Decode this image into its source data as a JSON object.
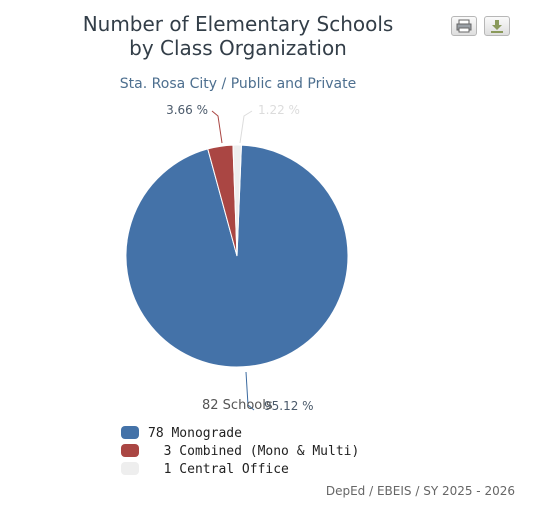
{
  "header": {
    "title_line1": "Number of Elementary Schools",
    "title_line2": "by Class Organization",
    "subtitle": "Sta. Rosa City / Public and Private"
  },
  "toolbar": {
    "print_icon": "printer-icon",
    "download_icon": "download-icon"
  },
  "center_label": "82 Schools",
  "credit": "DepEd / EBEIS / SY 2025 - 2026",
  "chart_data": {
    "type": "pie",
    "total_label": "82 Schools",
    "slices": [
      {
        "name": "Monograde",
        "value": 78,
        "percent_label": "95.12 %",
        "color": "#4472a8"
      },
      {
        "name": "Combined (Mono & Multi)",
        "value": 3,
        "percent_label": "3.66 %",
        "color": "#aa4643"
      },
      {
        "name": "Central Office",
        "value": 1,
        "percent_label": "1.22 %",
        "color": "#eeeeee"
      }
    ],
    "legend": [
      {
        "count": "78",
        "label": "Monograde"
      },
      {
        "count": "3",
        "label": "Combined (Mono & Multi)"
      },
      {
        "count": "1",
        "label": "Central Office"
      }
    ],
    "legend_position": "bottom-left"
  }
}
